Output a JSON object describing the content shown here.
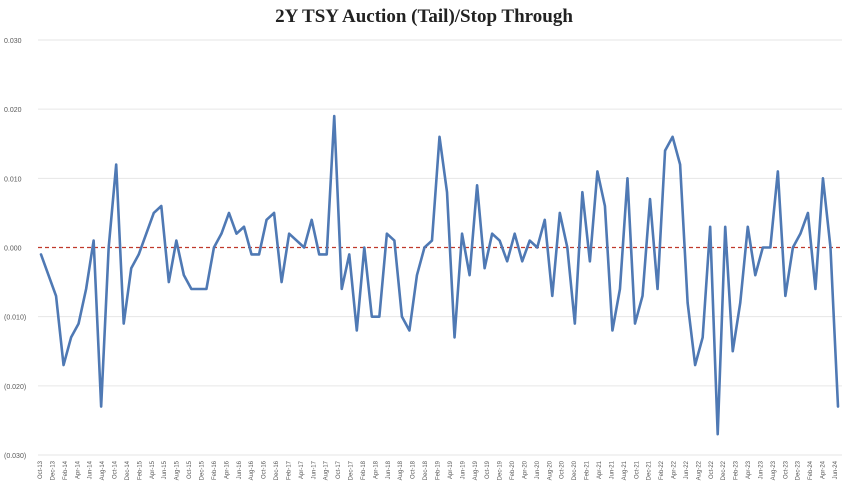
{
  "chart_data": {
    "type": "line",
    "title": "2Y TSY Auction (Tail)/Stop Through",
    "xlabel": "",
    "ylabel": "",
    "ylim": [
      -0.03,
      0.03
    ],
    "y_ticks": [
      "0.030",
      "0.020",
      "0.010",
      "0.000",
      "(0.010)",
      "(0.020)",
      "(0.030)"
    ],
    "x_tick_labels": [
      "Oct-13",
      "Dec-13",
      "Feb-14",
      "Apr-14",
      "Jun-14",
      "Aug-14",
      "Oct-14",
      "Dec-14",
      "Feb-15",
      "Apr-15",
      "Jun-15",
      "Aug-15",
      "Oct-15",
      "Dec-15",
      "Feb-16",
      "Apr-16",
      "Jun-16",
      "Aug-16",
      "Oct-16",
      "Dec-16",
      "Feb-17",
      "Apr-17",
      "Jun-17",
      "Aug-17",
      "Oct-17",
      "Dec-17",
      "Feb-18",
      "Apr-18",
      "Jun-18",
      "Aug-18",
      "Oct-18",
      "Dec-18",
      "Feb-19",
      "Apr-19",
      "Jun-19",
      "Aug-19",
      "Oct-19",
      "Dec-19",
      "Feb-20",
      "Apr-20",
      "Jun-20",
      "Aug-20",
      "Oct-20",
      "Dec-20",
      "Feb-21",
      "Apr-21",
      "Jun-21",
      "Aug-21",
      "Oct-21",
      "Dec-21",
      "Feb-22",
      "Apr-22",
      "Jun-22",
      "Aug-22",
      "Oct-22",
      "Dec-22",
      "Feb-23",
      "Apr-23",
      "Jun-23",
      "Aug-23",
      "Oct-23",
      "Dec-23",
      "Feb-24",
      "Apr-24",
      "Jun-24"
    ],
    "grid": true,
    "zero_line": {
      "value": 0,
      "style": "dashed",
      "color": "#c0392b"
    },
    "series_color": "#4f79b4",
    "grid_color": "#e6e6e6",
    "series": [
      {
        "values": [
          -0.001,
          -0.004,
          -0.007,
          -0.017,
          -0.013,
          -0.011,
          -0.006,
          0.001,
          -0.023,
          0.0,
          0.012,
          -0.011,
          -0.003,
          -0.001,
          0.002,
          0.005,
          0.006,
          -0.005,
          0.001,
          -0.004,
          -0.006,
          -0.006,
          -0.006,
          0.0,
          0.002,
          0.005,
          0.002,
          0.003,
          -0.001,
          -0.001,
          0.004,
          0.005,
          -0.005,
          0.002,
          0.001,
          0.0,
          0.004,
          -0.001,
          -0.001,
          0.019,
          -0.006,
          -0.001,
          -0.012,
          0.0,
          -0.01,
          -0.01,
          0.002,
          0.001,
          -0.01,
          -0.012,
          -0.004,
          0.0,
          0.001,
          0.016,
          0.008,
          -0.013,
          0.002,
          -0.004,
          0.009,
          -0.003,
          0.002,
          0.001,
          -0.002,
          0.002,
          -0.002,
          0.001,
          0.0,
          0.004,
          -0.007,
          0.005,
          0.0,
          -0.011,
          0.008,
          -0.002,
          0.011,
          0.006,
          -0.012,
          -0.006,
          0.01,
          -0.011,
          -0.007,
          0.007,
          -0.006,
          0.014,
          0.016,
          0.012,
          -0.008,
          -0.017,
          -0.013,
          0.003,
          -0.027,
          0.003,
          -0.015,
          -0.008,
          0.003,
          -0.004,
          0.0,
          0.0,
          0.011,
          -0.007,
          0.0,
          0.002,
          0.005,
          -0.006,
          0.01,
          0.0,
          -0.023
        ]
      }
    ]
  }
}
